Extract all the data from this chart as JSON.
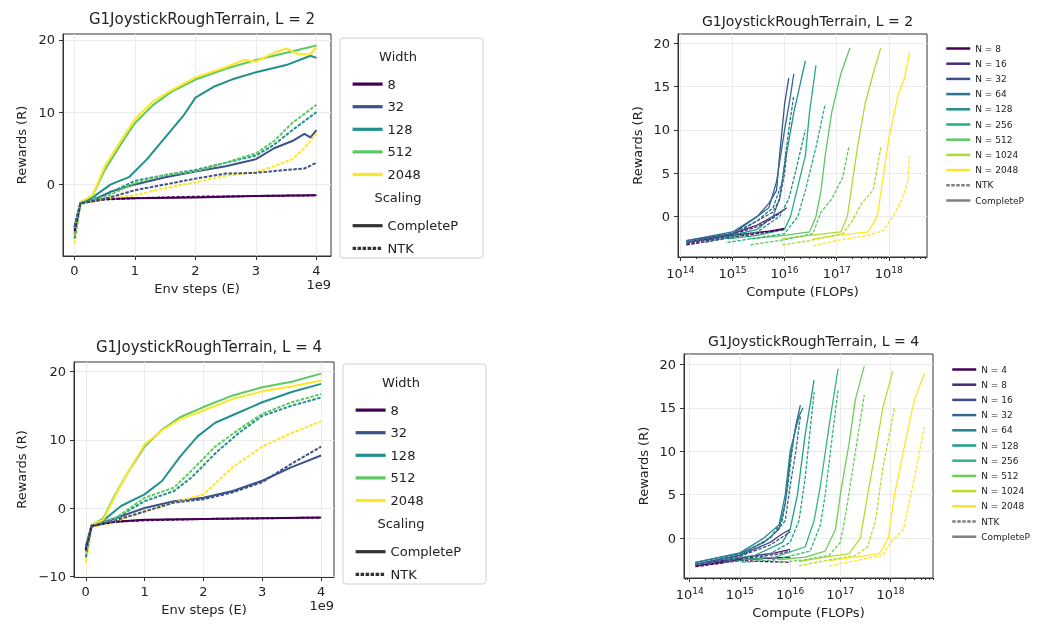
{
  "chart_data": [
    {
      "type": "line",
      "title": "G1JoystickRoughTerrain, L = 2",
      "xlabel": "Env steps (E)",
      "ylabel": "Rewards (R)",
      "legend_title": "Width",
      "annotations": [
        "1e9",
        "Scaling"
      ],
      "xlim": [
        -0.19,
        4.24
      ],
      "xticks": [
        0,
        1,
        2,
        3,
        4
      ],
      "ylim": [
        -9.9,
        20.8
      ],
      "yticks": [
        0,
        10,
        20
      ],
      "grid": true,
      "legend": "right",
      "marker": "none",
      "line_style": "solid",
      "series": [
        {
          "name": "8",
          "color": "#440154",
          "x": [
            0,
            0.1,
            0.5,
            1,
            2,
            3,
            4
          ],
          "values": [
            -6,
            -2.5,
            -2,
            -1.9,
            -1.8,
            -1.6,
            -1.5
          ]
        },
        {
          "color": "#440154",
          "line_style": "dashed",
          "x": [
            0,
            0.1,
            0.5,
            1,
            2,
            3,
            4
          ],
          "values": [
            -6.5,
            -2.6,
            -2.1,
            -1.9,
            -1.7,
            -1.6,
            -1.5
          ]
        },
        {
          "name": "32",
          "color": "#3b528b",
          "x": [
            0,
            0.1,
            0.3,
            0.6,
            1,
            1.5,
            2,
            2.5,
            3,
            3.3,
            3.6,
            3.8,
            3.9,
            4
          ],
          "values": [
            -6,
            -2.5,
            -2.2,
            -1,
            0,
            1,
            1.8,
            2.5,
            3.5,
            5,
            6,
            7,
            6.5,
            7.5
          ]
        },
        {
          "color": "#3b528b",
          "line_style": "dashed",
          "x": [
            0,
            0.1,
            0.5,
            1,
            1.5,
            2,
            2.5,
            3,
            3.5,
            3.8,
            4
          ],
          "values": [
            -5.8,
            -2.6,
            -2,
            -0.8,
            0,
            0.8,
            1.5,
            1.6,
            2,
            2.2,
            3
          ]
        },
        {
          "name": "128",
          "color": "#21918c",
          "x": [
            0,
            0.1,
            0.3,
            0.6,
            0.9,
            1.2,
            1.5,
            1.8,
            2,
            2.3,
            2.6,
            3,
            3.5,
            3.9,
            4
          ],
          "values": [
            -7,
            -2.5,
            -1.8,
            0,
            1,
            3.5,
            6.5,
            9.5,
            12,
            13.5,
            14.5,
            15.5,
            16.5,
            17.8,
            17.5
          ]
        },
        {
          "color": "#21918c",
          "line_style": "dashed",
          "x": [
            0,
            0.1,
            0.5,
            1,
            1.5,
            2,
            2.5,
            3,
            3.3,
            3.6,
            4
          ],
          "values": [
            -7.5,
            -2.6,
            -1.5,
            0.5,
            1.3,
            2,
            3,
            4,
            5.5,
            7.5,
            10
          ]
        },
        {
          "name": "512",
          "color": "#5ec962",
          "x": [
            0,
            0.1,
            0.3,
            0.5,
            0.8,
            1,
            1.3,
            1.6,
            2,
            2.5,
            3,
            3.5,
            4
          ],
          "values": [
            -6,
            -2.5,
            -1.5,
            2,
            6,
            8.5,
            11,
            12.8,
            14.5,
            16,
            17.2,
            18.2,
            19.2
          ]
        },
        {
          "color": "#5ec962",
          "line_style": "dashed",
          "x": [
            0,
            0.1,
            0.5,
            1,
            1.5,
            2,
            2.5,
            3,
            3.3,
            3.6,
            4
          ],
          "values": [
            -6.9,
            -2.6,
            -1.8,
            0.2,
            1.3,
            1.8,
            3,
            4.3,
            6,
            8.5,
            11
          ]
        },
        {
          "name": "2048",
          "color": "#fde725",
          "x": [
            0,
            0.1,
            0.3,
            0.5,
            0.8,
            1,
            1.3,
            1.6,
            2,
            2.5,
            2.8,
            3,
            3.3,
            3.5,
            3.7,
            3.9,
            4
          ],
          "values": [
            -7,
            -2.5,
            -1.5,
            2.5,
            6.5,
            9,
            11.5,
            13,
            14.8,
            16.2,
            17.2,
            17,
            18.2,
            18.8,
            18,
            18,
            19
          ]
        },
        {
          "color": "#fde725",
          "line_style": "dashed",
          "x": [
            0,
            0.1,
            0.5,
            1,
            1.5,
            2,
            2.5,
            3,
            3.3,
            3.6,
            3.8,
            4
          ],
          "values": [
            -8.2,
            -2.7,
            -2,
            -1.5,
            -0.5,
            0.3,
            1.2,
            1.7,
            2.5,
            3.5,
            5,
            7
          ]
        },
        {
          "name": "CompleteP",
          "color": "#333333"
        },
        {
          "name": "NTK",
          "color": "#333333",
          "line_style": "dashed"
        }
      ]
    },
    {
      "type": "line",
      "title": "G1JoystickRoughTerrain, L = 4",
      "xlabel": "Env steps (E)",
      "ylabel": "Rewards (R)",
      "legend_title": "Width",
      "annotations": [
        "1e9",
        "Scaling"
      ],
      "xlim": [
        -0.2,
        4.22
      ],
      "xticks": [
        0,
        1,
        2,
        3,
        4
      ],
      "ylim": [
        -10.1,
        21.4
      ],
      "yticks": [
        {
          "value": -10,
          "label": "−10"
        },
        0,
        10,
        20
      ],
      "grid": true,
      "legend": "right",
      "marker": "none",
      "line_style": "solid",
      "series": [
        {
          "name": "8",
          "color": "#440154",
          "x": [
            0,
            0.1,
            0.5,
            1,
            2,
            3,
            4
          ],
          "values": [
            -6,
            -2.5,
            -2,
            -1.7,
            -1.6,
            -1.5,
            -1.4
          ]
        },
        {
          "color": "#440154",
          "line_style": "dashed",
          "x": [
            0,
            0.1,
            0.5,
            1,
            2,
            3,
            4
          ],
          "values": [
            -6.2,
            -2.6,
            -2,
            -1.8,
            -1.6,
            -1.5,
            -1.4
          ]
        },
        {
          "name": "32",
          "color": "#3b528b",
          "x": [
            0,
            0.1,
            0.5,
            1,
            1.5,
            2,
            2.5,
            3,
            3.5,
            4
          ],
          "values": [
            -6,
            -2.6,
            -1.5,
            0,
            1,
            1.5,
            2.5,
            4,
            6,
            7.7
          ]
        },
        {
          "color": "#3b528b",
          "line_style": "dashed",
          "x": [
            0,
            0.1,
            0.5,
            1,
            1.5,
            2,
            2.5,
            3,
            3.5,
            4
          ],
          "values": [
            -5.8,
            -2.7,
            -1.8,
            -0.5,
            0.8,
            1.3,
            2.3,
            3.8,
            6.5,
            9
          ]
        },
        {
          "name": "128",
          "color": "#21918c",
          "x": [
            0,
            0.1,
            0.3,
            0.6,
            1,
            1.3,
            1.6,
            1.9,
            2.2,
            2.6,
            3,
            3.5,
            4
          ],
          "values": [
            -6,
            -2.6,
            -1.8,
            0.3,
            2,
            4,
            7.5,
            10.5,
            12.5,
            14,
            15.5,
            17,
            18.2
          ]
        },
        {
          "color": "#21918c",
          "line_style": "dashed",
          "x": [
            0,
            0.1,
            0.5,
            1,
            1.5,
            1.8,
            2.2,
            2.6,
            3,
            3.5,
            4
          ],
          "values": [
            -7.2,
            -2.7,
            -1.5,
            1,
            2.5,
            4.5,
            8,
            11,
            13.5,
            15,
            16.2
          ]
        },
        {
          "name": "512",
          "color": "#5ec962",
          "x": [
            0,
            0.1,
            0.3,
            0.5,
            0.7,
            1,
            1.3,
            1.6,
            2,
            2.5,
            3,
            3.5,
            4
          ],
          "values": [
            -5.5,
            -2.5,
            -1.5,
            2,
            5,
            9,
            11.5,
            13.3,
            14.8,
            16.5,
            17.7,
            18.5,
            19.7
          ]
        },
        {
          "color": "#5ec962",
          "line_style": "dashed",
          "x": [
            0,
            0.1,
            0.5,
            1,
            1.5,
            1.8,
            2.2,
            2.6,
            3,
            3.5,
            4
          ],
          "values": [
            -6.5,
            -2.7,
            -1.5,
            1.5,
            3,
            5.5,
            9,
            11.5,
            13.8,
            15.5,
            16.7
          ]
        },
        {
          "name": "2048",
          "color": "#fde725",
          "x": [
            0,
            0.1,
            0.3,
            0.5,
            0.7,
            1,
            1.3,
            1.6,
            2,
            2.5,
            3,
            3.5,
            4
          ],
          "values": [
            -7.5,
            -2.5,
            -1.7,
            1.8,
            5,
            9.3,
            11.4,
            13,
            14.3,
            16,
            17.1,
            17.8,
            18.7
          ]
        },
        {
          "color": "#fde725",
          "line_style": "dashed",
          "x": [
            0,
            0.1,
            0.5,
            1,
            1.5,
            2,
            2.5,
            3,
            3.5,
            4
          ],
          "values": [
            -8,
            -2.8,
            -2,
            -0.5,
            0.8,
            2,
            6,
            9,
            11,
            12.7
          ]
        },
        {
          "name": "CompleteP",
          "color": "#333333"
        },
        {
          "name": "NTK",
          "color": "#333333",
          "line_style": "dashed"
        }
      ]
    },
    {
      "type": "line",
      "title": "G1JoystickRoughTerrain, L = 2",
      "xlabel": "Compute (FLOPs)",
      "ylabel": "Rewards (R)",
      "log": "x",
      "xlim": [
        90000000000000.0,
        5.4e+18
      ],
      "xticks": [
        {
          "value": 100000000000000.0,
          "label": "10$^{14}$"
        },
        {
          "value": 1000000000000000.0,
          "label": "10$^{15}$"
        },
        {
          "value": 1e+16,
          "label": "10$^{16}$"
        },
        {
          "value": 1e+17,
          "label": "10$^{17}$"
        },
        {
          "value": 1e+18,
          "label": "10$^{18}$"
        }
      ],
      "ylim": [
        -4.7,
        21.1
      ],
      "yticks": [
        0,
        5,
        10,
        15,
        20
      ],
      "grid": true,
      "legend": "right",
      "marker": "none",
      "line_style": "solid",
      "series": [
        {
          "name": "N = 8",
          "color": "#440154",
          "x": [
            130000000000000.0,
            1000000000000000.0,
            5000000000000000.0,
            1e+16
          ],
          "values": [
            -3,
            -2.2,
            -1.7,
            -1.4
          ]
        },
        {
          "name": "N = 16",
          "color": "#472c7a",
          "x": [
            130000000000000.0,
            1000000000000000.0,
            3000000000000000.0,
            6000000000000000.0,
            1e+16
          ],
          "values": [
            -3,
            -2,
            -1,
            0,
            0.8
          ]
        },
        {
          "name": "N = 32",
          "color": "#3b518b",
          "x": [
            130000000000000.0,
            1000000000000000.0,
            3000000000000000.0,
            5000000000000000.0,
            7000000000000000.0,
            8000000000000000.0,
            1e+16,
            1.2e+16
          ],
          "values": [
            -2.8,
            -2,
            0,
            1.5,
            3,
            7,
            13,
            16
          ]
        },
        {
          "name": "N = 64",
          "color": "#2c718e",
          "x": [
            130000000000000.0,
            1000000000000000.0,
            3000000000000000.0,
            5000000000000000.0,
            7000000000000000.0,
            1e+16,
            1.3e+16,
            1.5e+16
          ],
          "values": [
            -2.8,
            -1.8,
            0,
            1,
            4,
            10,
            14,
            16.5
          ]
        },
        {
          "name": "N = 128",
          "color": "#21908d",
          "x": [
            300000000000000.0,
            1000000000000000.0,
            3000000000000000.0,
            6000000000000000.0,
            8000000000000000.0,
            1e+16,
            1.5e+16,
            2.5e+16
          ],
          "values": [
            -2.8,
            -2.2,
            -1.5,
            0,
            2,
            6,
            12,
            18
          ]
        },
        {
          "name": "N = 256",
          "color": "#27ad81",
          "x": [
            800000000000000.0,
            3000000000000000.0,
            1e+16,
            1.3e+16,
            1.8e+16,
            2.5e+16,
            3e+16,
            4e+16
          ],
          "values": [
            -2.6,
            -2.2,
            -1.5,
            0,
            3.5,
            7,
            12,
            17.5
          ]
        },
        {
          "name": "N = 512",
          "color": "#5cc863",
          "x": [
            2200000000000000.0,
            1e+16,
            3e+16,
            4e+16,
            5e+16,
            6e+16,
            8e+16,
            1.2e+17,
            1.8e+17
          ],
          "values": [
            -2.6,
            -2.2,
            -1.8,
            0,
            3,
            7,
            12,
            16.5,
            19.5
          ]
        },
        {
          "name": "N = 1024",
          "color": "#aadc32",
          "x": [
            9000000000000000.0,
            3e+16,
            1.2e+17,
            1.6e+17,
            2e+17,
            2.5e+17,
            3.5e+17,
            5e+17,
            7e+17
          ],
          "values": [
            -2.6,
            -2.2,
            -1.8,
            0,
            4,
            8,
            13,
            16.5,
            19.5
          ]
        },
        {
          "name": "N = 2048",
          "color": "#fde725",
          "x": [
            3.5e+16,
            1e+17,
            4e+17,
            6e+17,
            8e+17,
            1e+18,
            1.5e+18,
            2e+18,
            2.5e+18
          ],
          "values": [
            -2.6,
            -2.2,
            -1.8,
            0,
            5,
            9,
            14,
            16,
            19
          ]
        },
        {
          "color": "#440154",
          "line_style": "dashed",
          "x": [
            130000000000000.0,
            1000000000000000.0,
            5000000000000000.0,
            1e+16
          ],
          "values": [
            -3.3,
            -2.4,
            -1.8,
            -1.5
          ]
        },
        {
          "color": "#472c7a",
          "line_style": "dashed",
          "x": [
            130000000000000.0,
            1000000000000000.0,
            3000000000000000.0,
            6000000000000000.0,
            1.1e+16
          ],
          "values": [
            -3.2,
            -2.1,
            -1.2,
            -0.2,
            1
          ]
        },
        {
          "color": "#3b518b",
          "line_style": "dashed",
          "x": [
            130000000000000.0,
            1000000000000000.0,
            3000000000000000.0,
            6000000000000000.0,
            8000000000000000.0,
            1e+16,
            1.1e+16
          ],
          "values": [
            -3.1,
            -2.2,
            -0.5,
            0.5,
            2,
            5,
            7.5
          ]
        },
        {
          "color": "#2c718e",
          "line_style": "dashed",
          "x": [
            130000000000000.0,
            1000000000000000.0,
            3000000000000000.0,
            6000000000000000.0,
            9000000000000000.0,
            1.2e+16,
            1.5e+16
          ],
          "values": [
            -3,
            -2,
            -0.5,
            1,
            4,
            10,
            14
          ]
        },
        {
          "color": "#21908d",
          "line_style": "dashed",
          "x": [
            300000000000000.0,
            1000000000000000.0,
            3000000000000000.0,
            8000000000000000.0,
            1.2e+16,
            1.6e+16,
            2.5e+16
          ],
          "values": [
            -3,
            -2.4,
            -1.8,
            0,
            2,
            5,
            10
          ]
        },
        {
          "color": "#27ad81",
          "line_style": "dashed",
          "x": [
            800000000000000.0,
            3000000000000000.0,
            1e+16,
            1.8e+16,
            2.5e+16,
            4e+16,
            6e+16
          ],
          "values": [
            -3,
            -2.5,
            -2,
            0,
            3,
            8,
            13
          ]
        },
        {
          "color": "#5cc863",
          "line_style": "dashed",
          "x": [
            2200000000000000.0,
            1e+16,
            3.5e+16,
            5e+16,
            8e+16,
            1.3e+17,
            1.7e+17
          ],
          "values": [
            -3.3,
            -2.7,
            -2,
            0.5,
            2,
            4.5,
            8
          ]
        },
        {
          "color": "#aadc32",
          "line_style": "dashed",
          "x": [
            9000000000000000.0,
            3e+16,
            1.3e+17,
            2e+17,
            3e+17,
            5e+17,
            7e+17
          ],
          "values": [
            -3.3,
            -2.8,
            -2,
            -0.5,
            1.5,
            3,
            8
          ]
        },
        {
          "color": "#fde725",
          "line_style": "dashed",
          "x": [
            3.5e+16,
            1e+17,
            4e+17,
            8e+17,
            1.2e+18,
            1.8e+18,
            2.3e+18,
            2.5e+18
          ],
          "values": [
            -3.4,
            -2.8,
            -2.2,
            -1.6,
            0,
            2,
            4,
            7
          ]
        },
        {
          "name": "NTK",
          "color": "#808080",
          "line_style": "dashed"
        },
        {
          "name": "CompleteP",
          "color": "#808080"
        }
      ]
    },
    {
      "type": "line",
      "title": "G1JoystickRoughTerrain, L = 4",
      "xlabel": "Compute (FLOPs)",
      "ylabel": "Rewards (R)",
      "log": "x",
      "xlim": [
        77000000000000.0,
        7e+18
      ],
      "xticks": [
        {
          "value": 100000000000000.0,
          "label": "10$^{14}$"
        },
        {
          "value": 1000000000000000.0,
          "label": "10$^{15}$"
        },
        {
          "value": 1e+16,
          "label": "10$^{16}$"
        },
        {
          "value": 1e+17,
          "label": "10$^{17}$"
        },
        {
          "value": 1e+18,
          "label": "10$^{18}$"
        }
      ],
      "ylim": [
        -4.6,
        21.2
      ],
      "yticks": [
        0,
        5,
        10,
        15,
        20
      ],
      "grid": true,
      "legend": "right",
      "marker": "none",
      "line_style": "solid",
      "series": [
        {
          "name": "N = 4",
          "color": "#440154",
          "x": [
            130000000000000.0,
            1000000000000000.0,
            1e+16
          ],
          "values": [
            -3.2,
            -2.5,
            -2.2
          ]
        },
        {
          "name": "N = 8",
          "color": "#482878",
          "x": [
            130000000000000.0,
            1000000000000000.0,
            5000000000000000.0,
            1e+16
          ],
          "values": [
            -3,
            -2.3,
            -1.7,
            -1.3
          ]
        },
        {
          "name": "N = 16",
          "color": "#3e4989",
          "x": [
            130000000000000.0,
            1000000000000000.0,
            4000000000000000.0,
            7000000000000000.0,
            1e+16
          ],
          "values": [
            -3,
            -2,
            -0.5,
            0.5,
            1
          ]
        },
        {
          "name": "N = 32",
          "color": "#31688e",
          "x": [
            130000000000000.0,
            1000000000000000.0,
            3000000000000000.0,
            6000000000000000.0,
            8000000000000000.0,
            1e+16,
            1.3e+16,
            1.6e+16
          ],
          "values": [
            -2.8,
            -1.8,
            -0.5,
            1,
            4,
            9,
            13,
            15.3
          ]
        },
        {
          "name": "N = 64",
          "color": "#26828e",
          "x": [
            130000000000000.0,
            1000000000000000.0,
            3000000000000000.0,
            6000000000000000.0,
            8000000000000000.0,
            1e+16,
            1.5e+16,
            1.8e+16
          ],
          "values": [
            -2.8,
            -1.7,
            0,
            1.5,
            5,
            10,
            14,
            15
          ]
        },
        {
          "name": "N = 128",
          "color": "#1f9e89",
          "x": [
            500000000000000.0,
            2000000000000000.0,
            7000000000000000.0,
            1e+16,
            1.4e+16,
            2e+16,
            3e+16
          ],
          "values": [
            -2.5,
            -2,
            -0.5,
            1,
            5,
            12,
            18.2
          ]
        },
        {
          "name": "N = 256",
          "color": "#35b779",
          "x": [
            1100000000000000.0,
            5000000000000000.0,
            2e+16,
            3e+16,
            4e+16,
            6e+16,
            9e+16
          ],
          "values": [
            -2.5,
            -2.2,
            -1,
            2,
            6,
            13,
            19.5
          ]
        },
        {
          "name": "N = 512",
          "color": "#6ece58",
          "x": [
            6000000000000000.0,
            2e+16,
            5e+16,
            8e+16,
            1e+17,
            1.5e+17,
            2e+17,
            3e+17
          ],
          "values": [
            -2.5,
            -2.2,
            -1.5,
            1,
            5,
            11,
            16,
            19.8
          ]
        },
        {
          "name": "N = 1024",
          "color": "#b5de2b",
          "x": [
            1.5e+16,
            5e+16,
            1.5e+17,
            2.5e+17,
            3.5e+17,
            5e+17,
            7e+17,
            1.1e+18
          ],
          "values": [
            -2.7,
            -2.2,
            -1.8,
            0,
            5,
            10,
            15,
            19.2
          ]
        },
        {
          "name": "N = 2048",
          "color": "#fde725",
          "x": [
            6e+16,
            2e+17,
            6e+17,
            9e+17,
            1.2e+18,
            1.8e+18,
            3e+18,
            4.8e+18
          ],
          "values": [
            -2.6,
            -2.2,
            -1.8,
            0,
            5,
            10,
            16,
            19
          ]
        },
        {
          "color": "#440154",
          "line_style": "dashed",
          "x": [
            130000000000000.0,
            1000000000000000.0,
            1e+16
          ],
          "values": [
            -3.3,
            -2.6,
            -2.8
          ]
        },
        {
          "color": "#482878",
          "line_style": "dashed",
          "x": [
            130000000000000.0,
            1000000000000000.0,
            5000000000000000.0,
            1e+16
          ],
          "values": [
            -3.2,
            -2.4,
            -1.9,
            -1.5
          ]
        },
        {
          "color": "#3e4989",
          "line_style": "dashed",
          "x": [
            130000000000000.0,
            1000000000000000.0,
            4000000000000000.0,
            1e+16
          ],
          "values": [
            -3.1,
            -2.1,
            -0.8,
            0.7
          ]
        },
        {
          "color": "#31688e",
          "line_style": "dashed",
          "x": [
            130000000000000.0,
            1000000000000000.0,
            4000000000000000.0,
            8000000000000000.0,
            1e+16,
            1.3e+16,
            1.6e+16
          ],
          "values": [
            -3,
            -2,
            0,
            2,
            6,
            10,
            14
          ]
        },
        {
          "color": "#26828e",
          "line_style": "dashed",
          "x": [
            130000000000000.0,
            1000000000000000.0,
            4000000000000000.0,
            7000000000000000.0,
            9000000000000000.0,
            1.2e+16,
            1.6e+16
          ],
          "values": [
            -3,
            -1.9,
            0,
            2,
            6,
            12,
            14.5
          ]
        },
        {
          "color": "#1f9e89",
          "line_style": "dashed",
          "x": [
            500000000000000.0,
            3000000000000000.0,
            1e+16,
            1.5e+16,
            2e+16,
            3e+16
          ],
          "values": [
            -2.8,
            -2.2,
            -0.5,
            2,
            7,
            16.8
          ]
        },
        {
          "color": "#35b779",
          "line_style": "dashed",
          "x": [
            1100000000000000.0,
            5000000000000000.0,
            2.5e+16,
            4e+16,
            5e+16,
            7e+16,
            9e+16
          ],
          "values": [
            -2.8,
            -2.5,
            -1.5,
            1.5,
            5,
            12,
            17
          ]
        },
        {
          "color": "#6ece58",
          "line_style": "dashed",
          "x": [
            6000000000000000.0,
            2e+16,
            6e+16,
            1e+17,
            1.3e+17,
            2e+17,
            3e+17
          ],
          "values": [
            -2.8,
            -2.5,
            -2,
            -0.5,
            3,
            10,
            16.5
          ]
        },
        {
          "color": "#b5de2b",
          "line_style": "dashed",
          "x": [
            1.5e+16,
            5e+16,
            2e+17,
            3.5e+17,
            5e+17,
            7e+17,
            1.2e+18
          ],
          "values": [
            -3.2,
            -2.6,
            -2,
            -1,
            2,
            8,
            15
          ]
        },
        {
          "color": "#fde725",
          "line_style": "dashed",
          "x": [
            6e+16,
            2e+17,
            7e+17,
            1e+18,
            1.8e+18,
            3e+18,
            4.7e+18
          ],
          "values": [
            -3.2,
            -2.6,
            -2,
            -0.5,
            1,
            7,
            12.8
          ]
        },
        {
          "name": "NTK",
          "color": "#808080",
          "line_style": "dashed"
        },
        {
          "name": "CompleteP",
          "color": "#808080"
        }
      ]
    }
  ]
}
